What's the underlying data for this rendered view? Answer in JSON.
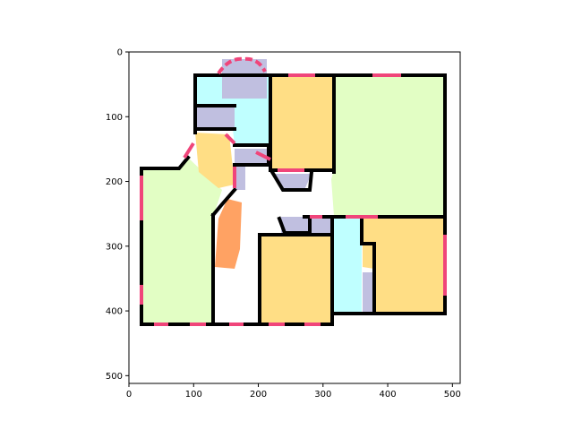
{
  "x_axis": {
    "range": [
      0,
      512
    ],
    "ticks": [
      {
        "value": 0,
        "label": "0"
      },
      {
        "value": 100,
        "label": "100"
      },
      {
        "value": 200,
        "label": "200"
      },
      {
        "value": 300,
        "label": "300"
      },
      {
        "value": 400,
        "label": "400"
      },
      {
        "value": 500,
        "label": "500"
      }
    ]
  },
  "y_axis": {
    "range": [
      0,
      512
    ],
    "inverted": true,
    "ticks": [
      {
        "value": 0,
        "label": "0"
      },
      {
        "value": 100,
        "label": "100"
      },
      {
        "value": 200,
        "label": "200"
      },
      {
        "value": 300,
        "label": "300"
      },
      {
        "value": 400,
        "label": "400"
      },
      {
        "value": 500,
        "label": "500"
      }
    ]
  },
  "colors": {
    "wall": "#000000",
    "door_window": "#f0457a",
    "bedroom": "#ffde85",
    "living_room": "#e2fec4",
    "bathroom": "#bfffff",
    "closet": "#c0bfe0",
    "kitchen": "#ffa263",
    "background": "#ffffff"
  }
}
